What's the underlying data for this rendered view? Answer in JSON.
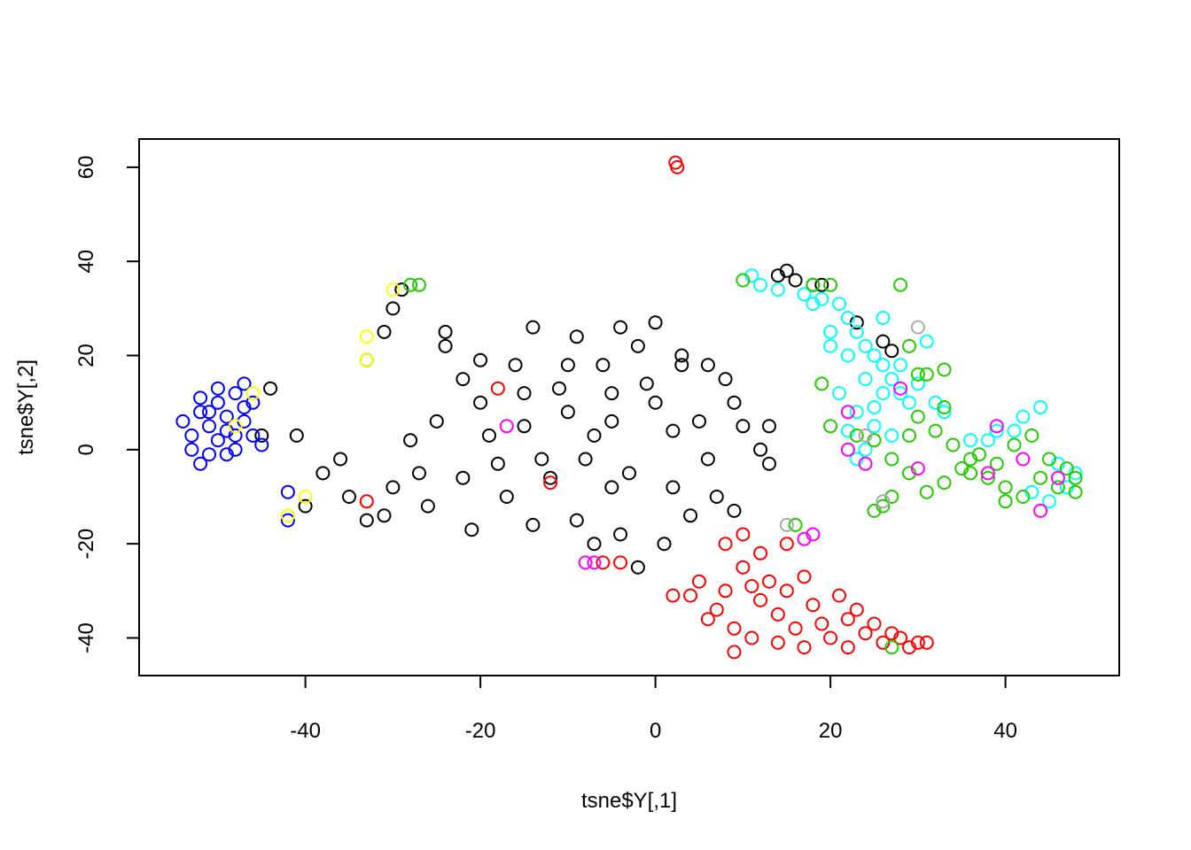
{
  "chart_data": {
    "type": "scatter",
    "title": "",
    "xlabel": "tsne$Y[,1]",
    "ylabel": "tsne$Y[,2]",
    "xlim": [
      -59,
      53
    ],
    "ylim": [
      -48,
      66
    ],
    "xticks": [
      -40,
      -20,
      0,
      20,
      40
    ],
    "yticks": [
      -40,
      -20,
      0,
      20,
      40,
      60
    ],
    "xtick_labels": [
      "-40",
      "-20",
      "0",
      "20",
      "40"
    ],
    "ytick_labels": [
      "-40",
      "-20",
      "0",
      "20",
      "40",
      "60"
    ],
    "grid": false,
    "legend": "none",
    "marker": "open-circle",
    "series": [
      {
        "color": "#000000",
        "points": [
          [
            -25,
            6
          ],
          [
            -20,
            10
          ],
          [
            -15,
            5
          ],
          [
            -10,
            8
          ],
          [
            -5,
            12
          ],
          [
            0,
            10
          ],
          [
            5,
            6
          ],
          [
            -8,
            -2
          ],
          [
            -3,
            -5
          ],
          [
            2,
            -8
          ],
          [
            -18,
            -3
          ],
          [
            -12,
            -6
          ],
          [
            -6,
            18
          ],
          [
            -2,
            22
          ],
          [
            3,
            20
          ],
          [
            8,
            15
          ],
          [
            10,
            5
          ],
          [
            12,
            0
          ],
          [
            -22,
            15
          ],
          [
            -28,
            2
          ],
          [
            -30,
            -8
          ],
          [
            -35,
            -10
          ],
          [
            -38,
            -5
          ],
          [
            -40,
            -12
          ],
          [
            -33,
            -15
          ],
          [
            -26,
            -12
          ],
          [
            -21,
            -17
          ],
          [
            -17,
            -10
          ],
          [
            -14,
            -16
          ],
          [
            -9,
            -15
          ],
          [
            -4,
            -18
          ],
          [
            1,
            -20
          ],
          [
            -2,
            -25
          ],
          [
            -7,
            3
          ],
          [
            -11,
            13
          ],
          [
            -16,
            18
          ],
          [
            -24,
            22
          ],
          [
            -31,
            25
          ],
          [
            -30,
            30
          ],
          [
            -29,
            34
          ],
          [
            -33,
            19
          ],
          [
            -45,
            3
          ],
          [
            -44,
            13
          ],
          [
            -41,
            3
          ],
          [
            -24,
            25
          ],
          [
            -14,
            26
          ],
          [
            -9,
            24
          ],
          [
            -4,
            26
          ],
          [
            0,
            27
          ],
          [
            6,
            18
          ],
          [
            9,
            10
          ],
          [
            13,
            5
          ],
          [
            13,
            -3
          ],
          [
            7,
            -10
          ],
          [
            4,
            -14
          ],
          [
            -5,
            -8
          ],
          [
            -13,
            -2
          ],
          [
            -19,
            3
          ],
          [
            -22,
            -6
          ],
          [
            -27,
            -5
          ],
          [
            -36,
            -2
          ],
          [
            -31,
            -14
          ],
          [
            -20,
            19
          ],
          [
            -5,
            6
          ],
          [
            2,
            4
          ],
          [
            6,
            -2
          ],
          [
            -1,
            14
          ],
          [
            -10,
            18
          ],
          [
            -15,
            12
          ],
          [
            -7,
            -20
          ],
          [
            14,
            37
          ],
          [
            16,
            36
          ],
          [
            18,
            35
          ],
          [
            19,
            35
          ],
          [
            15,
            38
          ],
          [
            23,
            27
          ],
          [
            26,
            23
          ],
          [
            27,
            21
          ],
          [
            9,
            -13
          ],
          [
            3,
            18
          ]
        ]
      },
      {
        "color": "#ff0000",
        "points": [
          [
            2.3,
            61
          ],
          [
            2.5,
            60
          ],
          [
            8,
            -30
          ],
          [
            10,
            -25
          ],
          [
            12,
            -32
          ],
          [
            14,
            -35
          ],
          [
            16,
            -38
          ],
          [
            18,
            -33
          ],
          [
            20,
            -40
          ],
          [
            22,
            -36
          ],
          [
            24,
            -39
          ],
          [
            26,
            -41
          ],
          [
            28,
            -40
          ],
          [
            30,
            -41
          ],
          [
            31,
            -41
          ],
          [
            5,
            -28
          ],
          [
            7,
            -34
          ],
          [
            9,
            -38
          ],
          [
            11,
            -40
          ],
          [
            13,
            -28
          ],
          [
            15,
            -30
          ],
          [
            17,
            -42
          ],
          [
            19,
            -37
          ],
          [
            21,
            -31
          ],
          [
            23,
            -34
          ],
          [
            25,
            -37
          ],
          [
            27,
            -39
          ],
          [
            29,
            -42
          ],
          [
            4,
            -31
          ],
          [
            6,
            -36
          ],
          [
            10,
            -18
          ],
          [
            12,
            -22
          ],
          [
            8,
            -20
          ],
          [
            11,
            -29
          ],
          [
            17,
            -27
          ],
          [
            22,
            -42
          ],
          [
            9,
            -43
          ],
          [
            14,
            -41
          ],
          [
            -18,
            13
          ],
          [
            -12,
            -7
          ],
          [
            -6,
            -24
          ],
          [
            -4,
            -24
          ],
          [
            -33,
            -11
          ],
          [
            15,
            -20
          ],
          [
            2,
            -31
          ]
        ]
      },
      {
        "color": "#00ffff",
        "points": [
          [
            11,
            37
          ],
          [
            12,
            35
          ],
          [
            14,
            34
          ],
          [
            17,
            33
          ],
          [
            19,
            32
          ],
          [
            21,
            31
          ],
          [
            22,
            28
          ],
          [
            23,
            25
          ],
          [
            24,
            22
          ],
          [
            25,
            20
          ],
          [
            26,
            18
          ],
          [
            27,
            15
          ],
          [
            28,
            12
          ],
          [
            29,
            10
          ],
          [
            22,
            20
          ],
          [
            24,
            15
          ],
          [
            21,
            12
          ],
          [
            23,
            8
          ],
          [
            25,
            5
          ],
          [
            27,
            3
          ],
          [
            24,
            0
          ],
          [
            23,
            -2
          ],
          [
            30,
            14
          ],
          [
            32,
            10
          ],
          [
            31,
            23
          ],
          [
            26,
            28
          ],
          [
            20,
            25
          ],
          [
            28,
            18
          ],
          [
            25,
            9
          ],
          [
            22,
            4
          ],
          [
            36,
            2
          ],
          [
            39,
            4
          ],
          [
            42,
            7
          ],
          [
            44,
            9
          ],
          [
            46,
            -3
          ],
          [
            48,
            -5
          ],
          [
            47,
            -8
          ],
          [
            45,
            -11
          ],
          [
            43,
            -9
          ],
          [
            41,
            4
          ],
          [
            38,
            2
          ],
          [
            33,
            8
          ],
          [
            18,
            31
          ],
          [
            20,
            22
          ],
          [
            26,
            12
          ]
        ]
      },
      {
        "color": "#22cc00",
        "points": [
          [
            10,
            36
          ],
          [
            20,
            35
          ],
          [
            18,
            35
          ],
          [
            28,
            35
          ],
          [
            29,
            22
          ],
          [
            30,
            16
          ],
          [
            33,
            17
          ],
          [
            30,
            7
          ],
          [
            32,
            4
          ],
          [
            34,
            1
          ],
          [
            36,
            -2
          ],
          [
            38,
            -6
          ],
          [
            40,
            -8
          ],
          [
            42,
            -10
          ],
          [
            44,
            -6
          ],
          [
            46,
            -8
          ],
          [
            48,
            -9
          ],
          [
            47,
            -4
          ],
          [
            45,
            -2
          ],
          [
            43,
            3
          ],
          [
            41,
            1
          ],
          [
            39,
            -3
          ],
          [
            37,
            -1
          ],
          [
            35,
            -4
          ],
          [
            33,
            -7
          ],
          [
            31,
            -9
          ],
          [
            29,
            -5
          ],
          [
            27,
            -2
          ],
          [
            25,
            2
          ],
          [
            23,
            3
          ],
          [
            25,
            -13
          ],
          [
            26,
            -12
          ],
          [
            27,
            -10
          ],
          [
            20,
            5
          ],
          [
            19,
            14
          ],
          [
            -28,
            35
          ],
          [
            -27,
            35
          ],
          [
            16,
            -16
          ],
          [
            27,
            -42
          ],
          [
            29,
            3
          ],
          [
            33,
            9
          ],
          [
            40,
            -11
          ],
          [
            48,
            -6
          ],
          [
            36,
            -5
          ],
          [
            31,
            16
          ]
        ]
      },
      {
        "color": "#0000ff",
        "points": [
          [
            -54,
            6
          ],
          [
            -53,
            3
          ],
          [
            -52,
            8
          ],
          [
            -51,
            5
          ],
          [
            -50,
            10
          ],
          [
            -49,
            7
          ],
          [
            -48,
            12
          ],
          [
            -47,
            14
          ],
          [
            -46,
            10
          ],
          [
            -50,
            2
          ],
          [
            -51,
            -1
          ],
          [
            -52,
            -3
          ],
          [
            -49,
            -1
          ],
          [
            -48,
            3
          ],
          [
            -47,
            6
          ],
          [
            -46,
            3
          ],
          [
            -53,
            0
          ],
          [
            -52,
            11
          ],
          [
            -50,
            13
          ],
          [
            -47,
            9
          ],
          [
            -49,
            4
          ],
          [
            -51,
            8
          ],
          [
            -48,
            0
          ],
          [
            -45,
            1
          ],
          [
            -42,
            -9
          ],
          [
            -42,
            -15
          ]
        ]
      },
      {
        "color": "#ff00ff",
        "points": [
          [
            -8,
            -24
          ],
          [
            -7,
            -24
          ],
          [
            17,
            -19
          ],
          [
            18,
            -18
          ],
          [
            22,
            8
          ],
          [
            22,
            0
          ],
          [
            28,
            13
          ],
          [
            38,
            -5
          ],
          [
            42,
            -2
          ],
          [
            44,
            -13
          ],
          [
            -17,
            5
          ],
          [
            30,
            -4
          ],
          [
            39,
            5
          ],
          [
            46,
            -6
          ],
          [
            24,
            -3
          ]
        ]
      },
      {
        "color": "#ffff00",
        "points": [
          [
            -30,
            34
          ],
          [
            -33,
            24
          ],
          [
            -33,
            19
          ],
          [
            -46,
            12
          ],
          [
            -48,
            5
          ],
          [
            -40,
            -10
          ],
          [
            -42,
            -14
          ]
        ]
      },
      {
        "color": "#aaaaaa",
        "points": [
          [
            30,
            26
          ],
          [
            15,
            -16
          ],
          [
            26,
            -11
          ],
          [
            24,
            3
          ]
        ]
      }
    ]
  }
}
